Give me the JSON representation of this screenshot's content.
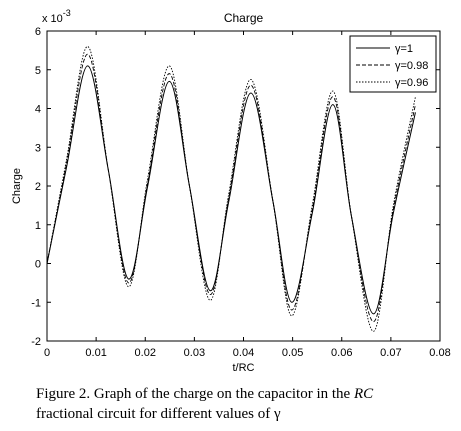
{
  "chart_data": {
    "type": "line",
    "title": "Charge",
    "xlabel": "t/RC",
    "ylabel": "Charge",
    "y_exponent_label": "x 10",
    "y_exponent_power": "-3",
    "xlim": [
      0,
      0.08
    ],
    "ylim": [
      -2,
      6
    ],
    "xticks": [
      0,
      0.01,
      0.02,
      0.03,
      0.04,
      0.05,
      0.06,
      0.07,
      0.08
    ],
    "xtick_labels": [
      "0",
      "0.01",
      "0.02",
      "0.03",
      "0.04",
      "0.05",
      "0.06",
      "0.07",
      "0.08"
    ],
    "yticks": [
      -2,
      -1,
      0,
      1,
      2,
      3,
      4,
      5,
      6
    ],
    "ytick_labels": [
      "-2",
      "-1",
      "0",
      "1",
      "2",
      "3",
      "4",
      "5",
      "6"
    ],
    "grid": false,
    "legend_position": "top-right",
    "series": [
      {
        "name": "γ=1",
        "style": "solid",
        "x": [
          0,
          0.004,
          0.0083,
          0.0125,
          0.0166,
          0.0205,
          0.0249,
          0.029,
          0.0332,
          0.037,
          0.0415,
          0.046,
          0.0498,
          0.054,
          0.0582,
          0.062,
          0.0665,
          0.0705,
          0.075
        ],
        "y": [
          0,
          2.5,
          5.1,
          2.4,
          -0.4,
          2.0,
          4.7,
          2.0,
          -0.7,
          1.6,
          4.4,
          1.6,
          -1.0,
          1.3,
          4.1,
          1.2,
          -1.3,
          1.3,
          3.9
        ]
      },
      {
        "name": "γ=0.98",
        "style": "dashed",
        "x": [
          0,
          0.004,
          0.0083,
          0.0125,
          0.0166,
          0.0205,
          0.0249,
          0.029,
          0.0332,
          0.037,
          0.0415,
          0.046,
          0.0498,
          0.054,
          0.0582,
          0.062,
          0.0665,
          0.0705,
          0.075
        ],
        "y": [
          0,
          2.6,
          5.4,
          2.4,
          -0.5,
          2.1,
          4.9,
          2.0,
          -0.8,
          1.7,
          4.6,
          1.6,
          -1.2,
          1.4,
          4.3,
          1.2,
          -1.5,
          1.4,
          4.1
        ]
      },
      {
        "name": "γ=0.96",
        "style": "dotted",
        "x": [
          0,
          0.004,
          0.0083,
          0.0125,
          0.0166,
          0.0205,
          0.0249,
          0.029,
          0.0332,
          0.037,
          0.0415,
          0.046,
          0.0498,
          0.054,
          0.0582,
          0.062,
          0.0665,
          0.0705,
          0.075
        ],
        "y": [
          0,
          2.7,
          5.6,
          2.4,
          -0.6,
          2.2,
          5.1,
          2.0,
          -0.95,
          1.8,
          4.75,
          1.6,
          -1.35,
          1.5,
          4.45,
          1.2,
          -1.75,
          1.5,
          4.3
        ]
      }
    ]
  },
  "caption": {
    "line1_prefix": "Figure 2. Graph of the charge on the capacitor in the ",
    "line1_italic": "RC",
    "line2_prefix": "fractional circuit for different values of ",
    "line2_symbol": "γ"
  }
}
